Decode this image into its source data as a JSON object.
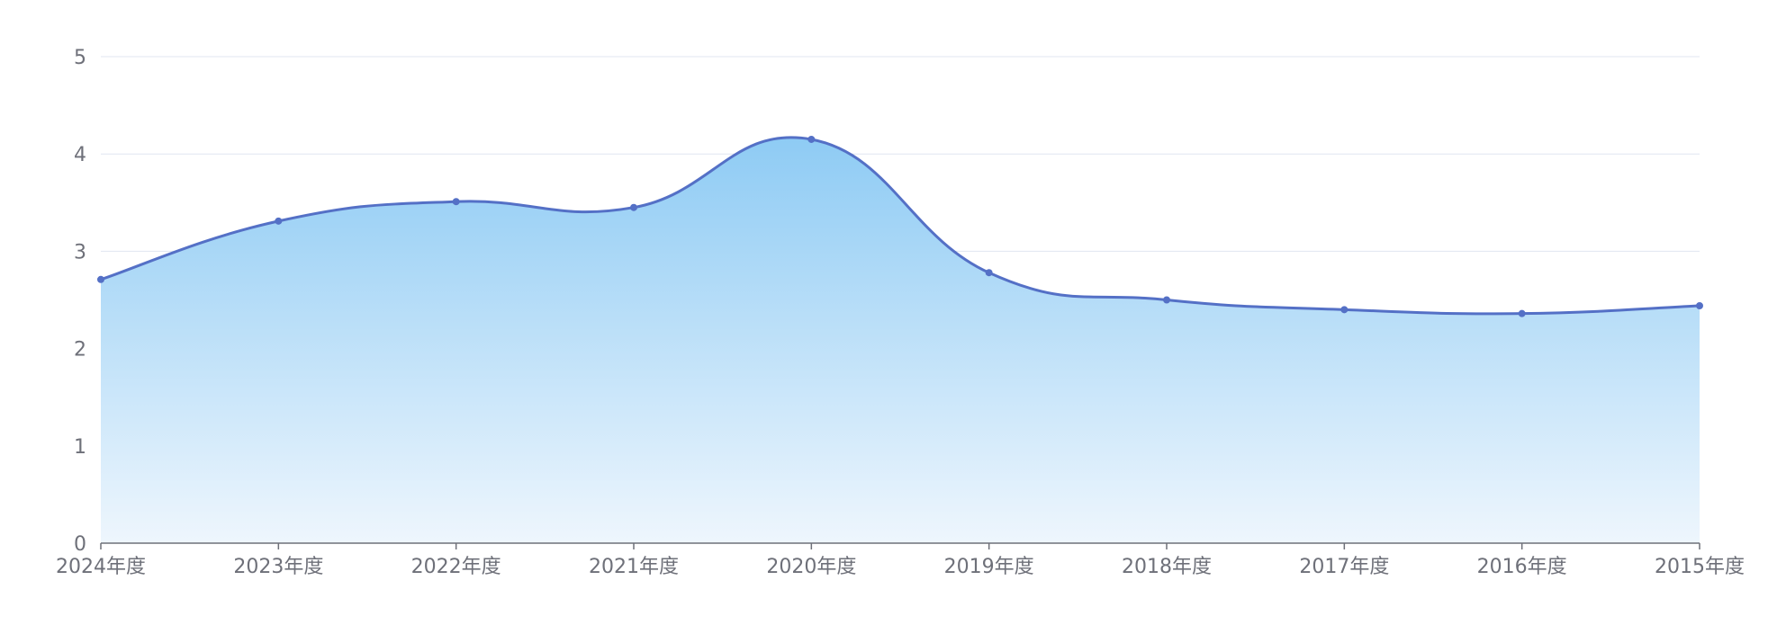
{
  "chart_data": {
    "type": "area",
    "categories": [
      "2024年度",
      "2023年度",
      "2022年度",
      "2021年度",
      "2020年度",
      "2019年度",
      "2018年度",
      "2017年度",
      "2016年度",
      "2015年度"
    ],
    "series": [
      {
        "values": [
          2.71,
          3.31,
          3.51,
          3.45,
          4.15,
          2.78,
          2.5,
          2.4,
          2.36,
          2.44
        ]
      }
    ],
    "yticks": [
      "0",
      "1",
      "2",
      "3",
      "4",
      "5"
    ],
    "ylim": [
      0,
      5
    ],
    "smooth": true,
    "grid": true,
    "legend": "none",
    "colors": {
      "line": "#5470c6",
      "area_top": "#8ecbf4",
      "area_bottom": "#eef6fd",
      "grid": "#e0e6f1",
      "axis": "#6e7079",
      "tick_text": "#6e7079"
    }
  }
}
